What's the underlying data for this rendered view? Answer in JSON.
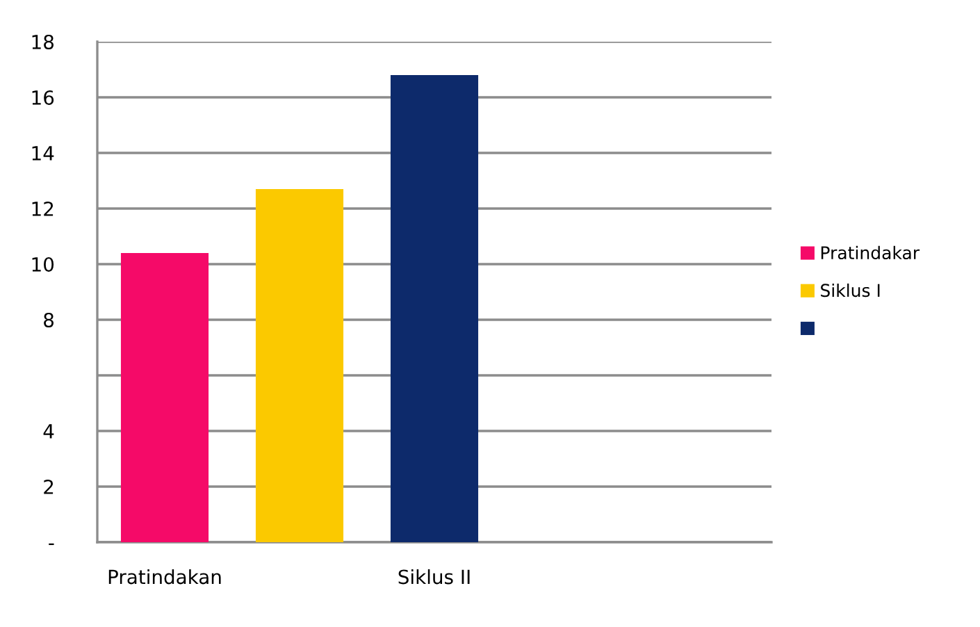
{
  "chart_data": {
    "type": "bar",
    "categories": [
      "Pratindakan",
      null,
      "Siklus II",
      null,
      null
    ],
    "series": [
      {
        "name": "Pratindakar",
        "color": "#f50a68",
        "values": [
          10.4,
          null,
          null,
          null,
          null
        ]
      },
      {
        "name": "Siklus I",
        "color": "#fbc900",
        "values": [
          null,
          12.7,
          null,
          null,
          null
        ]
      },
      {
        "color": "#0d2a6b",
        "values": [
          null,
          null,
          16.8,
          null,
          null
        ]
      }
    ],
    "ylim": [
      0,
      18
    ],
    "yticks": [
      {
        "value": 0,
        "label": "-"
      },
      2,
      4,
      {
        "value": 6,
        "label": null
      },
      8,
      10,
      12,
      14,
      16,
      18
    ],
    "grid": "y",
    "legend": "right"
  }
}
